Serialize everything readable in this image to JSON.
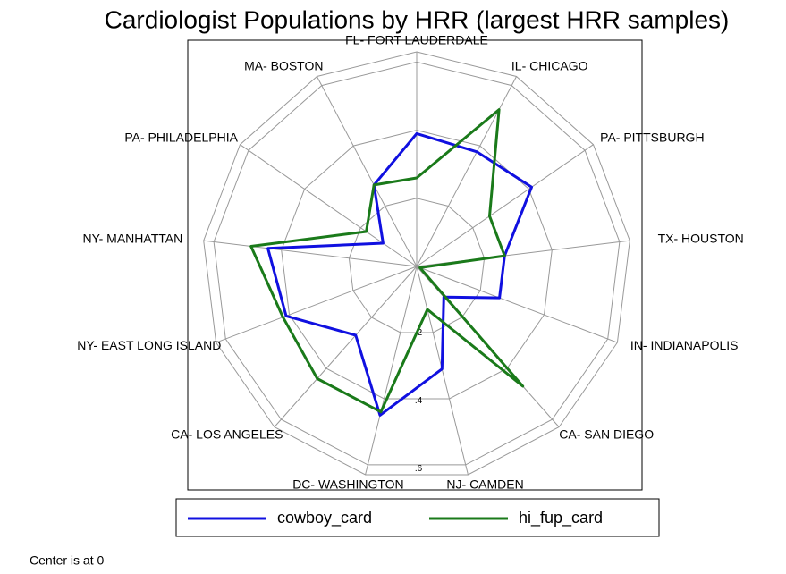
{
  "chart_data": {
    "type": "radar",
    "title": "Cardiologist Populations by HRR (largest HRR samples)",
    "categories": [
      "FL- FORT LAUDERDALE",
      "IL- CHICAGO",
      "PA- PITTSBURGH",
      "TX- HOUSTON",
      "IN- INDIANAPOLIS",
      "CA- SAN DIEGO",
      "NJ- CAMDEN",
      "DC- WASHINGTON",
      "CA- LOS ANGELES",
      "NY- EAST LONG ISLAND",
      "NY- MANHATTAN",
      "PA- PHILADELPHIA",
      "MA- BOSTON"
    ],
    "series": [
      {
        "name": "cowboy_card",
        "color": "#1010e0",
        "values": [
          0.39,
          0.38,
          0.41,
          0.26,
          0.26,
          0.12,
          0.31,
          0.45,
          0.27,
          0.41,
          0.44,
          0.12,
          0.27
        ]
      },
      {
        "name": "hi_fup_card",
        "color": "#1a7a1a",
        "values": [
          0.26,
          0.52,
          0.26,
          0.26,
          0.01,
          0.47,
          0.13,
          0.44,
          0.44,
          0.42,
          0.49,
          0.18,
          0.27
        ]
      }
    ],
    "ylim": [
      0,
      0.63
    ],
    "yticks": [
      {
        "value": 0.2,
        "label": ".2"
      },
      {
        "value": 0.4,
        "label": ".4"
      },
      {
        "value": 0.6,
        "label": ".6"
      }
    ],
    "grid": true,
    "legend": "bottom",
    "note": "Center is at 0"
  }
}
